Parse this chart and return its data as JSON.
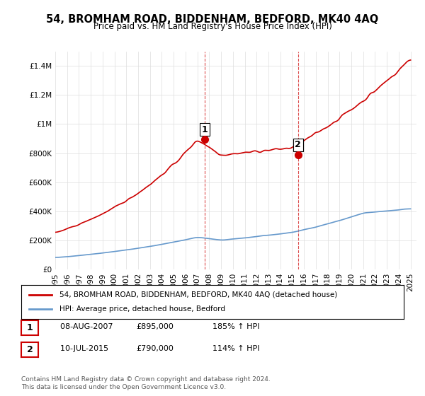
{
  "title": "54, BROMHAM ROAD, BIDDENHAM, BEDFORD, MK40 4AQ",
  "subtitle": "Price paid vs. HM Land Registry's House Price Index (HPI)",
  "legend_label_red": "54, BROMHAM ROAD, BIDDENHAM, BEDFORD, MK40 4AQ (detached house)",
  "legend_label_blue": "HPI: Average price, detached house, Bedford",
  "transaction1_label": "1",
  "transaction1_date": "08-AUG-2007",
  "transaction1_price": "£895,000",
  "transaction1_hpi": "185% ↑ HPI",
  "transaction2_label": "2",
  "transaction2_date": "10-JUL-2015",
  "transaction2_price": "£790,000",
  "transaction2_hpi": "114% ↑ HPI",
  "footer": "Contains HM Land Registry data © Crown copyright and database right 2024.\nThis data is licensed under the Open Government Licence v3.0.",
  "red_color": "#cc0000",
  "blue_color": "#6699cc",
  "dashed_color": "#cc0000",
  "marker1_x": 2007.6,
  "marker1_y": 895000,
  "marker2_x": 2015.5,
  "marker2_y": 790000,
  "ylim": [
    0,
    1500000
  ],
  "xlim_start": 1995,
  "xlim_end": 2025.5,
  "background_color": "#ffffff",
  "grid_color": "#dddddd"
}
